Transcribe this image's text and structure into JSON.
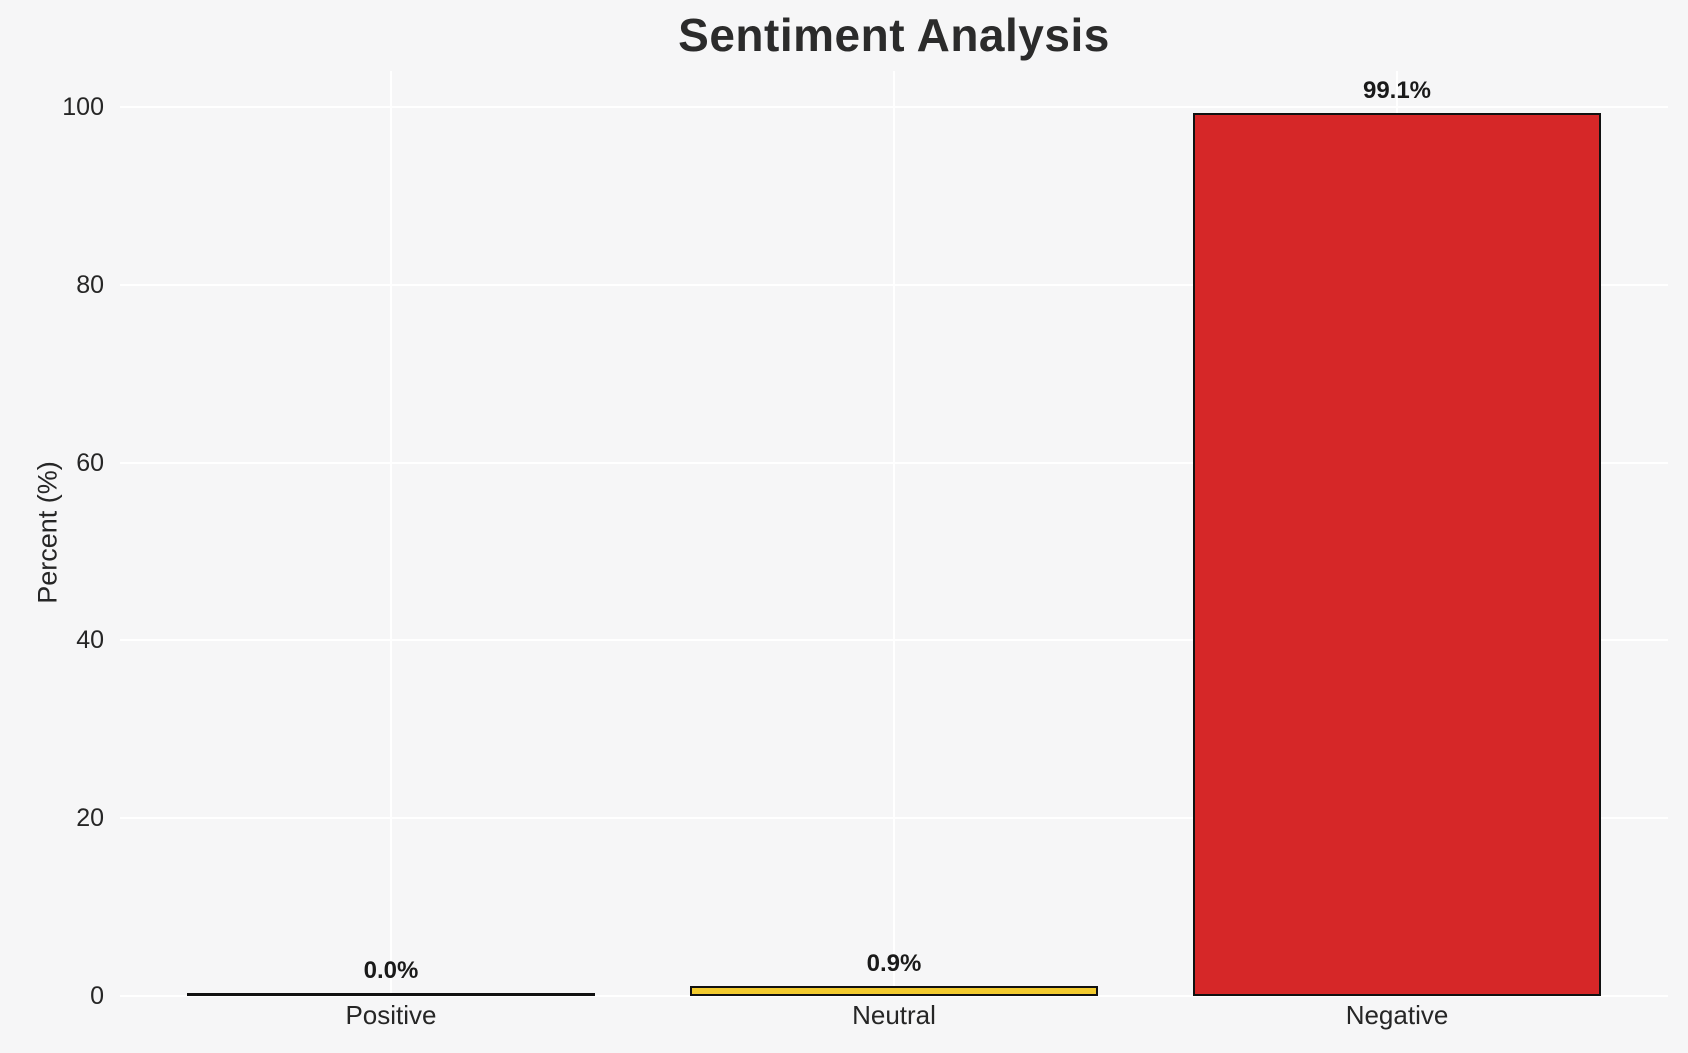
{
  "chart_data": {
    "type": "bar",
    "title": "Sentiment Analysis",
    "xlabel": "",
    "ylabel": "Percent (%)",
    "categories": [
      "Positive",
      "Neutral",
      "Negative"
    ],
    "values": [
      0.0,
      0.9,
      99.1
    ],
    "value_labels": [
      "0.0%",
      "0.9%",
      "99.1%"
    ],
    "bar_colors": [
      null,
      "#f2ca2e",
      "#d62728"
    ],
    "bar_edge_color": "#111111",
    "ylim": [
      0,
      104
    ],
    "yticks": [
      0,
      20,
      40,
      60,
      80,
      100
    ],
    "ytick_labels": [
      "0",
      "20",
      "40",
      "60",
      "80",
      "100"
    ],
    "grid": "on",
    "gridline_color": "#ffffff",
    "plot_background": "#f6f6f7",
    "text_color": "#262626",
    "legend": "none"
  }
}
